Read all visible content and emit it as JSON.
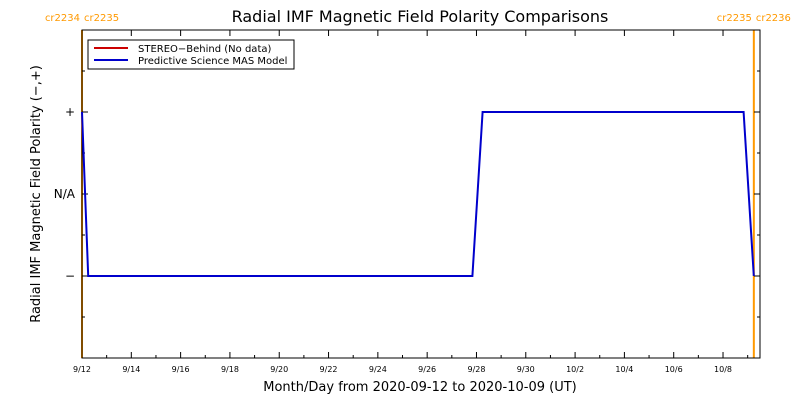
{
  "chart_data": {
    "type": "line",
    "title": "Radial IMF Magnetic Field Polarity Comparisons",
    "xlabel": "Month/Day from 2020-09-12 to 2020-10-09 (UT)",
    "ylabel": "Radial IMF Magnetic Field Polarity (−,+)",
    "x_range": [
      "2020-09-12",
      "2020-10-09"
    ],
    "x_ticks": [
      {
        "date": "2020-09-12",
        "label": "9/12"
      },
      {
        "date": "2020-09-14",
        "label": "9/14"
      },
      {
        "date": "2020-09-16",
        "label": "9/16"
      },
      {
        "date": "2020-09-18",
        "label": "9/18"
      },
      {
        "date": "2020-09-20",
        "label": "9/20"
      },
      {
        "date": "2020-09-22",
        "label": "9/22"
      },
      {
        "date": "2020-09-24",
        "label": "9/24"
      },
      {
        "date": "2020-09-26",
        "label": "9/26"
      },
      {
        "date": "2020-09-28",
        "label": "9/28"
      },
      {
        "date": "2020-09-30",
        "label": "9/30"
      },
      {
        "date": "2020-10-02",
        "label": "10/2"
      },
      {
        "date": "2020-10-04",
        "label": "10/4"
      },
      {
        "date": "2020-10-06",
        "label": "10/6"
      },
      {
        "date": "2020-10-08",
        "label": "10/8"
      }
    ],
    "y_range": [
      -2,
      2
    ],
    "y_ticks": [
      {
        "value": 1,
        "label": "+"
      },
      {
        "value": 0,
        "label": "N/A"
      },
      {
        "value": -1,
        "label": "−"
      }
    ],
    "legend_position": "top-left",
    "series": [
      {
        "name": "STEREO−Behind (No data)",
        "color": "#cc0000",
        "points": []
      },
      {
        "name": "Predictive Science MAS Model",
        "color": "#0000cc",
        "points": [
          [
            "2020-09-12T00:00",
            1
          ],
          [
            "2020-09-12T06:00",
            -1
          ],
          [
            "2020-09-27T20:00",
            -1
          ],
          [
            "2020-09-28T06:00",
            1
          ],
          [
            "2020-10-08T20:00",
            1
          ],
          [
            "2020-10-09T06:00",
            -1
          ]
        ]
      }
    ],
    "carrington_rotations": [
      {
        "date": "2020-09-12T00:00",
        "left_label": "cr2234",
        "right_label": "cr2235",
        "color": "#ff9900"
      },
      {
        "date": "2020-10-09T06:00",
        "left_label": "cr2235",
        "right_label": "cr2236",
        "color": "#ff9900"
      }
    ]
  }
}
